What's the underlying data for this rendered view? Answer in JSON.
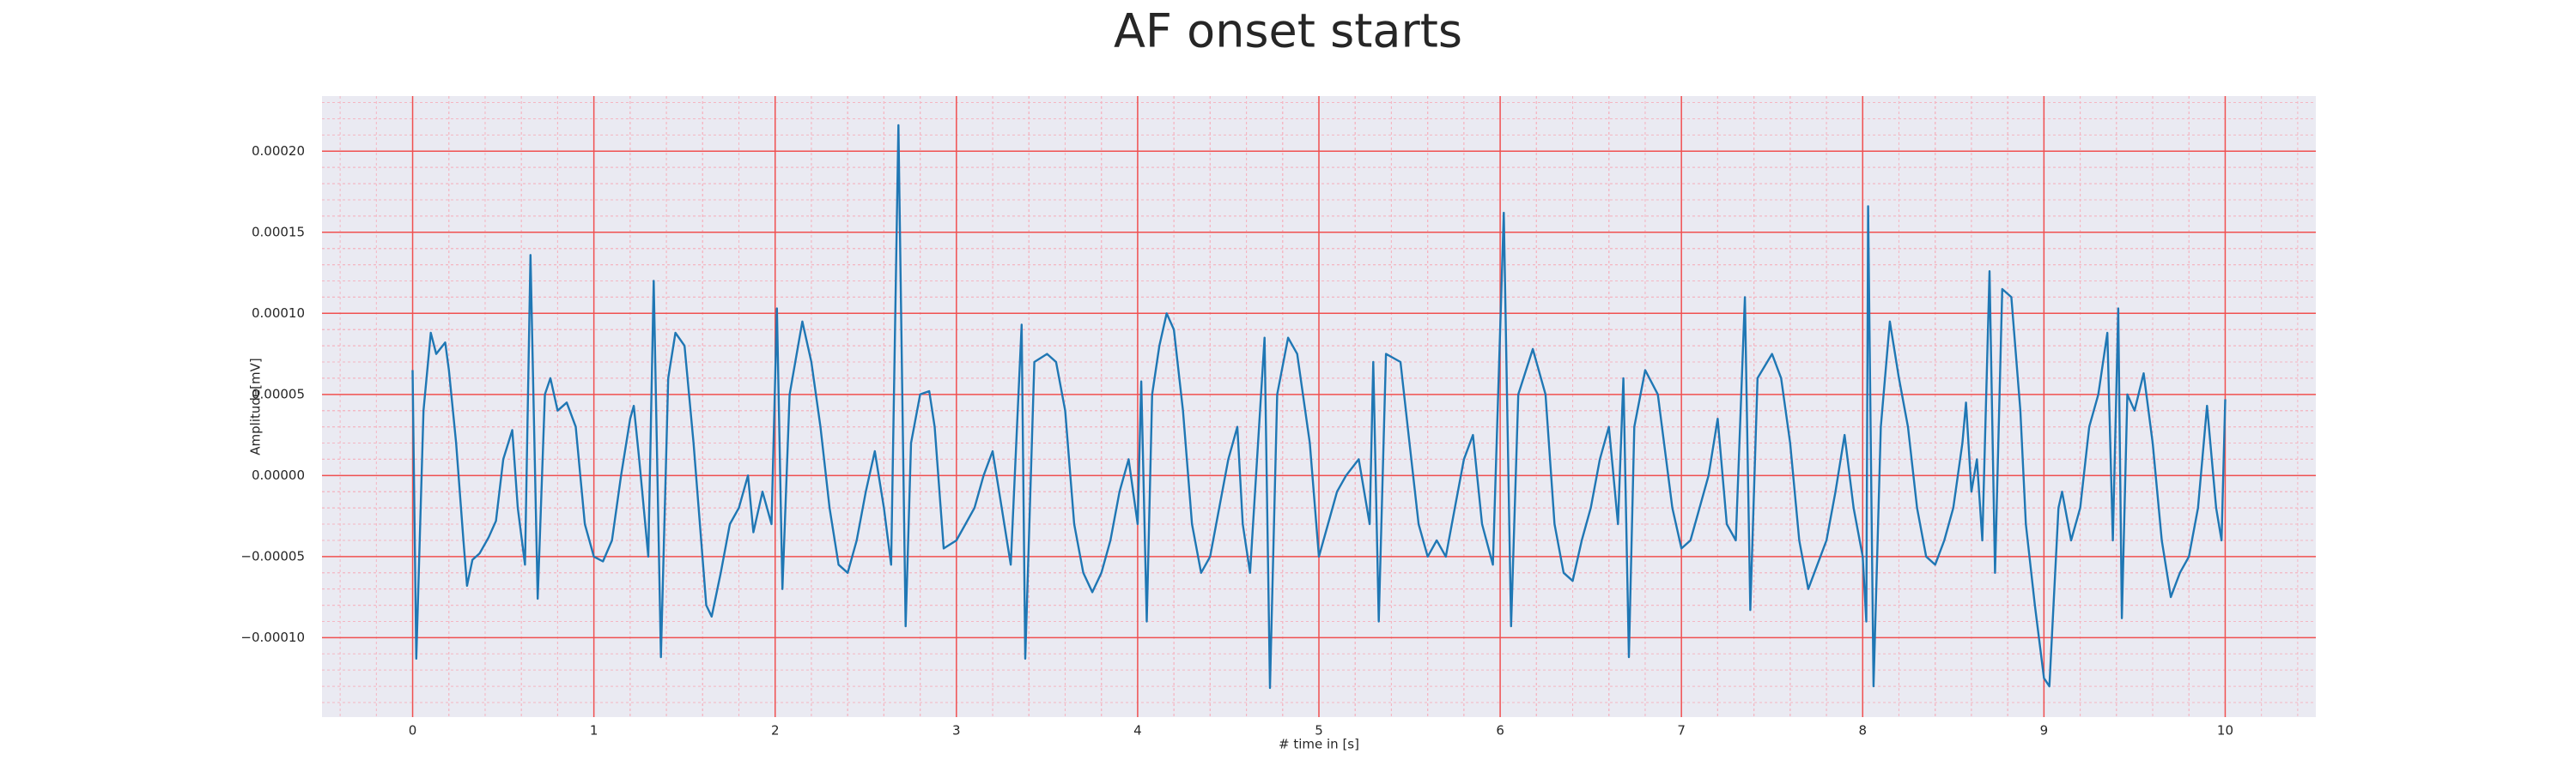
{
  "chart_data": {
    "type": "line",
    "title": "AF onset starts",
    "xlabel": "# time in [s]",
    "ylabel": "Amplitude[mV]",
    "x": [
      0,
      0.02,
      0.06,
      0.1,
      0.13,
      0.18,
      0.2,
      0.24,
      0.28,
      0.3,
      0.33,
      0.37,
      0.42,
      0.46,
      0.5,
      0.55,
      0.58,
      0.62,
      0.65,
      0.69,
      0.73,
      0.76,
      0.8,
      0.85,
      0.9,
      0.95,
      1.0,
      1.05,
      1.1,
      1.15,
      1.2,
      1.22,
      1.25,
      1.3,
      1.33,
      1.37,
      1.41,
      1.45,
      1.5,
      1.55,
      1.62,
      1.65,
      1.7,
      1.75,
      1.8,
      1.85,
      1.88,
      1.93,
      1.98,
      2.01,
      2.04,
      2.08,
      2.15,
      2.2,
      2.25,
      2.3,
      2.35,
      2.4,
      2.45,
      2.5,
      2.55,
      2.6,
      2.64,
      2.68,
      2.72,
      2.75,
      2.8,
      2.85,
      2.88,
      2.93,
      3.0,
      3.05,
      3.1,
      3.15,
      3.2,
      3.25,
      3.3,
      3.36,
      3.38,
      3.43,
      3.5,
      3.55,
      3.6,
      3.65,
      3.7,
      3.75,
      3.8,
      3.85,
      3.9,
      3.95,
      4.0,
      4.02,
      4.05,
      4.08,
      4.12,
      4.16,
      4.2,
      4.25,
      4.3,
      4.35,
      4.4,
      4.45,
      4.5,
      4.55,
      4.58,
      4.62,
      4.7,
      4.73,
      4.77,
      4.83,
      4.88,
      4.95,
      5.0,
      5.05,
      5.1,
      5.15,
      5.22,
      5.28,
      5.3,
      5.33,
      5.37,
      5.45,
      5.5,
      5.55,
      5.6,
      5.65,
      5.7,
      5.75,
      5.8,
      5.85,
      5.9,
      5.96,
      6.02,
      6.06,
      6.1,
      6.18,
      6.25,
      6.3,
      6.35,
      6.4,
      6.45,
      6.5,
      6.55,
      6.6,
      6.65,
      6.68,
      6.71,
      6.74,
      6.8,
      6.87,
      6.95,
      7.0,
      7.05,
      7.1,
      7.15,
      7.2,
      7.25,
      7.3,
      7.35,
      7.38,
      7.42,
      7.5,
      7.55,
      7.6,
      7.65,
      7.7,
      7.75,
      7.8,
      7.85,
      7.9,
      7.95,
      8.0,
      8.02,
      8.03,
      8.06,
      8.1,
      8.15,
      8.2,
      8.25,
      8.3,
      8.35,
      8.4,
      8.45,
      8.5,
      8.55,
      8.57,
      8.6,
      8.63,
      8.66,
      8.7,
      8.73,
      8.77,
      8.82,
      8.87,
      8.9,
      8.95,
      9.0,
      9.03,
      9.08,
      9.1,
      9.15,
      9.2,
      9.25,
      9.3,
      9.35,
      9.38,
      9.41,
      9.43,
      9.46,
      9.5,
      9.55,
      9.6,
      9.65,
      9.7,
      9.75,
      9.8,
      9.85,
      9.9,
      9.95,
      9.98,
      10.0
    ],
    "values": [
      6.5e-05,
      -0.000113,
      4e-05,
      8.8e-05,
      7.5e-05,
      8.2e-05,
      6.5e-05,
      2e-05,
      -4e-05,
      -6.8e-05,
      -5.2e-05,
      -4.8e-05,
      -3.8e-05,
      -2.8e-05,
      1e-05,
      2.8e-05,
      -2e-05,
      -5.5e-05,
      0.000136,
      -7.6e-05,
      5e-05,
      6e-05,
      4e-05,
      4.5e-05,
      3e-05,
      -3e-05,
      -5e-05,
      -5.3e-05,
      -4e-05,
      0,
      3.5e-05,
      4.3e-05,
      1e-05,
      -5e-05,
      0.00012,
      -0.000112,
      6e-05,
      8.8e-05,
      8e-05,
      2e-05,
      -8e-05,
      -8.7e-05,
      -6e-05,
      -3e-05,
      -2e-05,
      0,
      -3.5e-05,
      -1e-05,
      -3e-05,
      0.000103,
      -7e-05,
      5e-05,
      9.5e-05,
      7e-05,
      3e-05,
      -2e-05,
      -5.5e-05,
      -6e-05,
      -4e-05,
      -1e-05,
      1.5e-05,
      -2e-05,
      -5.5e-05,
      0.000216,
      -9.3e-05,
      2e-05,
      5e-05,
      5.2e-05,
      3e-05,
      -4.5e-05,
      -4e-05,
      -3e-05,
      -2e-05,
      0,
      1.5e-05,
      -2e-05,
      -5.5e-05,
      9.3e-05,
      -0.000113,
      7e-05,
      7.5e-05,
      7e-05,
      4e-05,
      -3e-05,
      -6e-05,
      -7.2e-05,
      -6e-05,
      -4e-05,
      -1e-05,
      1e-05,
      -3e-05,
      5.8e-05,
      -9e-05,
      5e-05,
      8e-05,
      0.0001,
      9e-05,
      4e-05,
      -3e-05,
      -6e-05,
      -5e-05,
      -2e-05,
      1e-05,
      3e-05,
      -3e-05,
      -6e-05,
      8.5e-05,
      -0.000131,
      5e-05,
      8.5e-05,
      7.5e-05,
      2e-05,
      -5e-05,
      -3e-05,
      -1e-05,
      0,
      1e-05,
      -3e-05,
      7e-05,
      -9e-05,
      7.5e-05,
      7e-05,
      2e-05,
      -3e-05,
      -5e-05,
      -4e-05,
      -5e-05,
      -2e-05,
      1e-05,
      2.5e-05,
      -3e-05,
      -5.5e-05,
      0.000162,
      -9.3e-05,
      5e-05,
      7.8e-05,
      5e-05,
      -3e-05,
      -6e-05,
      -6.5e-05,
      -4e-05,
      -2e-05,
      1e-05,
      3e-05,
      -3e-05,
      6e-05,
      -0.000112,
      3e-05,
      6.5e-05,
      5e-05,
      -2e-05,
      -4.5e-05,
      -4e-05,
      -2e-05,
      0,
      3.5e-05,
      -3e-05,
      -4e-05,
      0.00011,
      -8.3e-05,
      6e-05,
      7.5e-05,
      6e-05,
      2e-05,
      -4e-05,
      -7e-05,
      -5.5e-05,
      -4e-05,
      -1e-05,
      2.5e-05,
      -2e-05,
      -5e-05,
      -9e-05,
      0.000166,
      -0.00013,
      3e-05,
      9.5e-05,
      6e-05,
      3e-05,
      -2e-05,
      -5e-05,
      -5.5e-05,
      -4e-05,
      -2e-05,
      2e-05,
      4.5e-05,
      -1e-05,
      1e-05,
      -4e-05,
      0.000126,
      -6e-05,
      0.000115,
      0.00011,
      4e-05,
      -3e-05,
      -8e-05,
      -0.000125,
      -0.00013,
      -2e-05,
      -1e-05,
      -4e-05,
      -2e-05,
      3e-05,
      5e-05,
      8.8e-05,
      -4e-05,
      0.000103,
      -8.8e-05,
      5e-05,
      4e-05,
      6.3e-05,
      2e-05,
      -4e-05,
      -7.5e-05,
      -6e-05,
      -5e-05,
      -2e-05,
      4.3e-05,
      -2e-05,
      -4e-05,
      4.7e-05
    ],
    "color": "#1f77b4",
    "xlim": [
      -0.5,
      10.5
    ],
    "xticks": [
      0,
      1,
      2,
      3,
      4,
      5,
      6,
      7,
      8,
      9,
      10
    ],
    "ylim": [
      -0.000149,
      0.000234
    ],
    "yticks": [
      {
        "value": -0.0001,
        "label": "−0.00010"
      },
      {
        "value": -5e-05,
        "label": "−0.00005"
      },
      {
        "value": 0,
        "label": "0.00000"
      },
      {
        "value": 5e-05,
        "label": "0.00005"
      },
      {
        "value": 0.0001,
        "label": "0.00010"
      },
      {
        "value": 0.00015,
        "label": "0.00015"
      },
      {
        "value": 0.0002,
        "label": "0.00020"
      }
    ],
    "grid": true,
    "minor_grid": true
  }
}
